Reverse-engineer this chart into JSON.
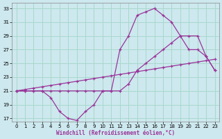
{
  "background_color": "#cde8ee",
  "line_color": "#993399",
  "grid_color": "#a8d8cc",
  "xlabel": "Windchill (Refroidissement éolien,°C)",
  "xlim": [
    -0.5,
    23.5
  ],
  "ylim": [
    16.5,
    33.8
  ],
  "xticks": [
    0,
    1,
    2,
    3,
    4,
    5,
    6,
    7,
    8,
    9,
    10,
    11,
    12,
    13,
    14,
    15,
    16,
    17,
    18,
    19,
    20,
    21,
    22,
    23
  ],
  "yticks": [
    17,
    19,
    21,
    23,
    25,
    27,
    29,
    31,
    33
  ],
  "series": [
    {
      "x": [
        0,
        1,
        2,
        3,
        4,
        5,
        6,
        7,
        8,
        9,
        10,
        11,
        12,
        13,
        14,
        15,
        16,
        17,
        18,
        19,
        20,
        21,
        22,
        23
      ],
      "y": [
        21,
        21,
        21,
        21,
        21,
        21,
        21,
        21,
        21,
        21,
        21,
        21,
        27,
        29,
        32,
        32.5,
        33,
        32,
        31,
        29,
        27,
        27,
        26,
        24
      ]
    },
    {
      "x": [
        0,
        1,
        2,
        3,
        4,
        5,
        6,
        7,
        8,
        9,
        10,
        11,
        12,
        13,
        14,
        15,
        16,
        17,
        18,
        19,
        20,
        21,
        22,
        23
      ],
      "y": [
        21,
        21.2,
        21.4,
        21.6,
        21.8,
        22,
        22.2,
        22.4,
        22.6,
        22.8,
        23,
        23.2,
        23.4,
        23.6,
        23.8,
        24,
        24.2,
        24.4,
        24.6,
        24.8,
        25,
        25.2,
        25.4,
        25.6
      ]
    },
    {
      "x": [
        0,
        1,
        2,
        3,
        4,
        5,
        6,
        7,
        8,
        9,
        10,
        11,
        12,
        13,
        14,
        15,
        16,
        17,
        18,
        19,
        20,
        21,
        22,
        23
      ],
      "y": [
        21,
        21,
        21,
        21,
        20,
        18,
        17,
        16.7,
        18,
        19,
        21,
        21,
        21,
        22,
        24,
        25,
        26,
        27,
        28,
        29,
        29,
        29,
        26,
        24
      ]
    }
  ]
}
